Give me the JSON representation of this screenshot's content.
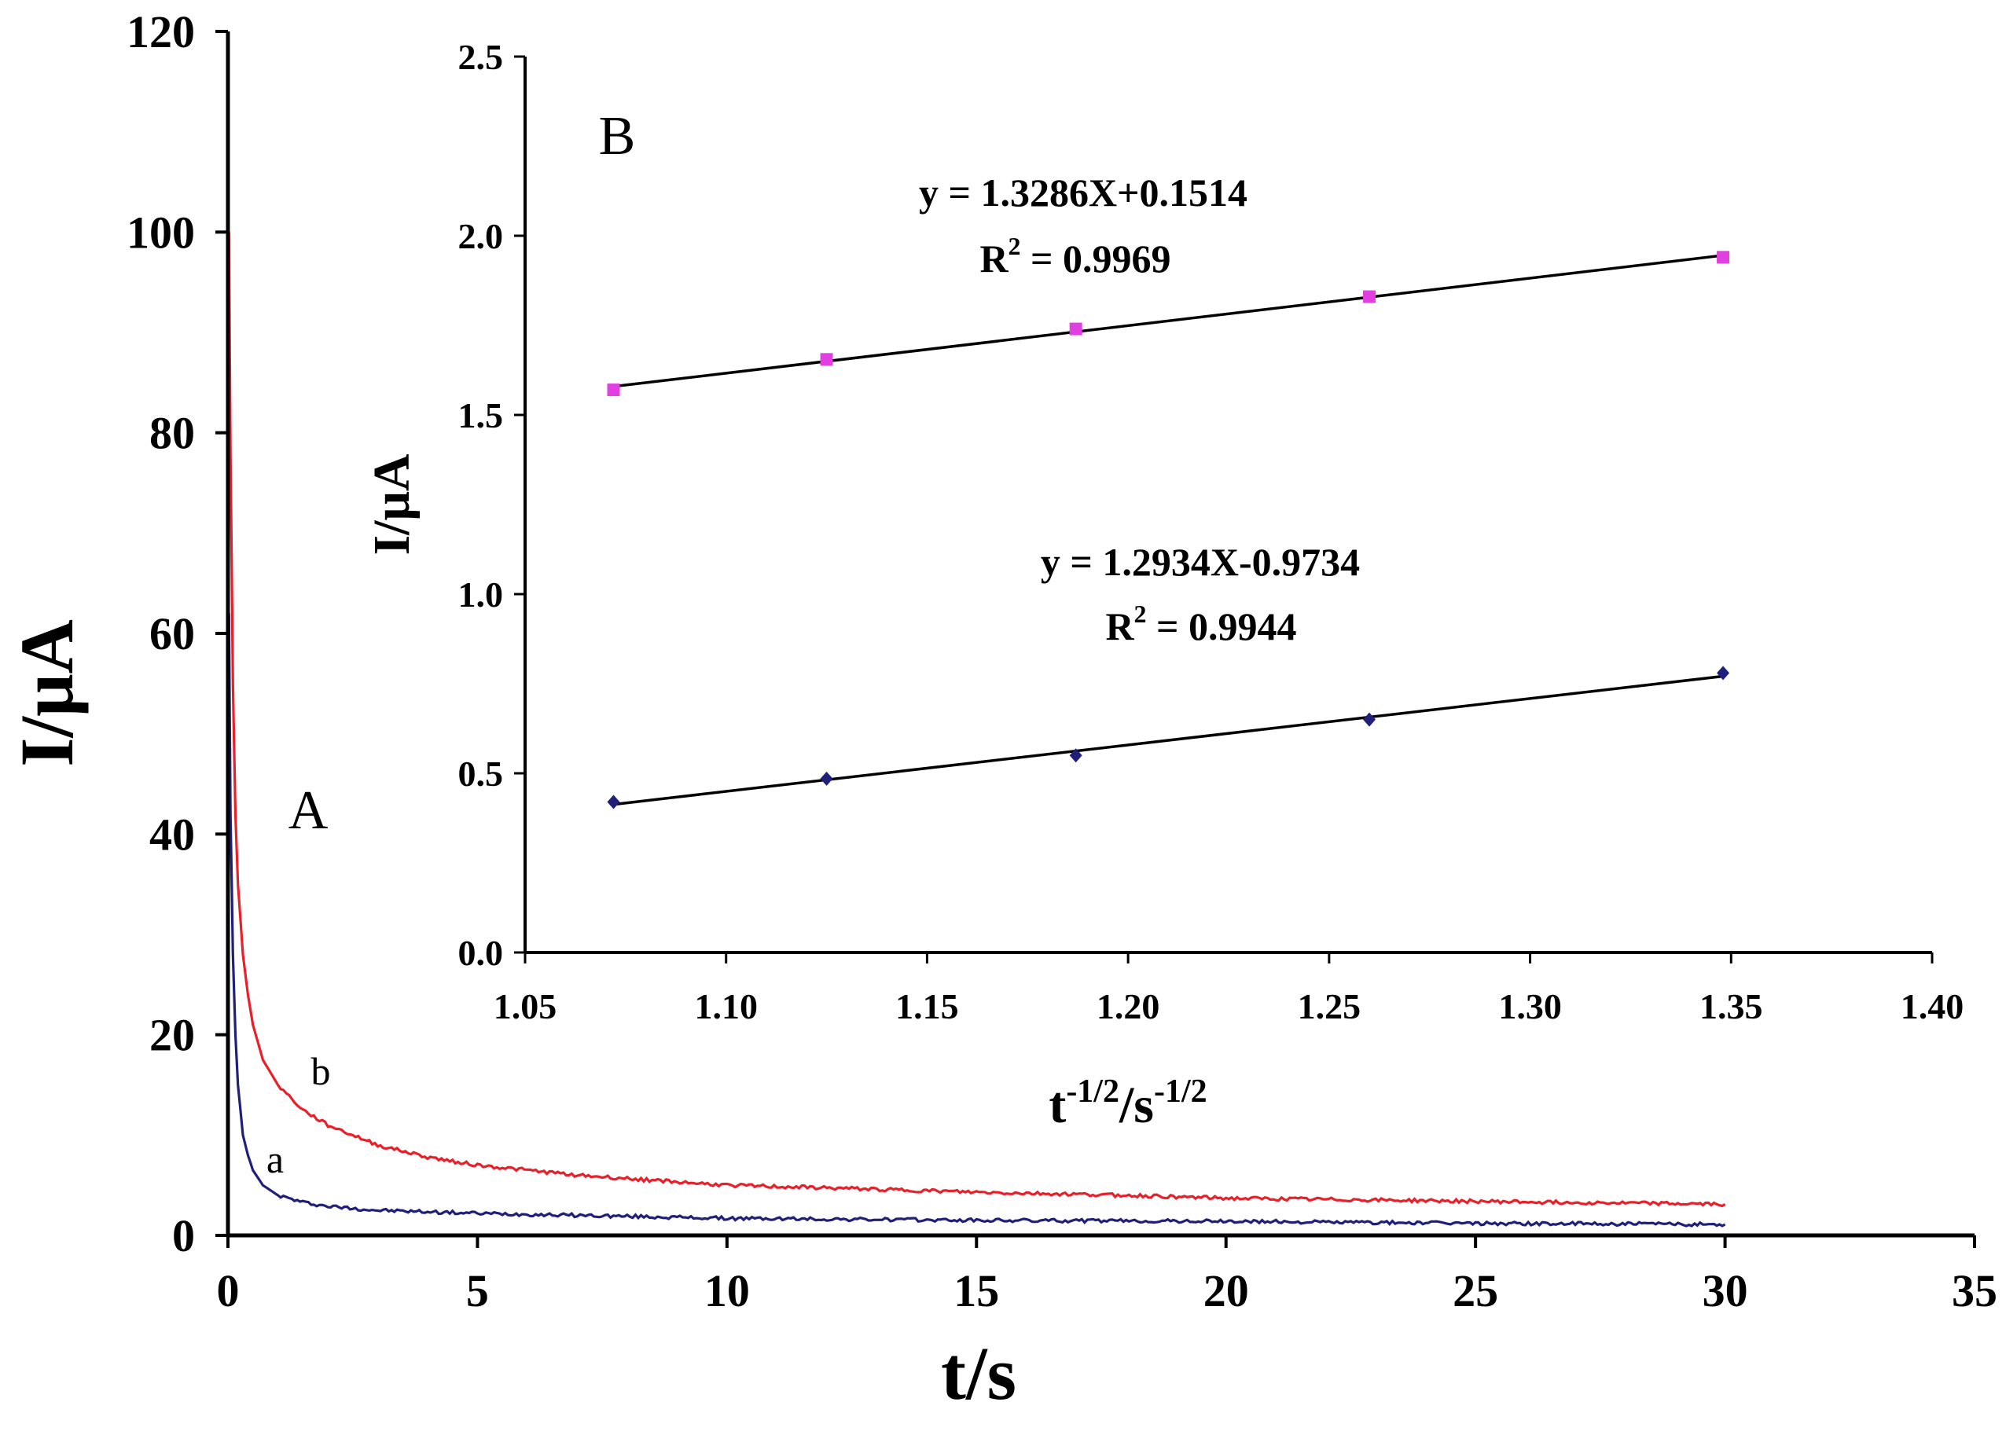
{
  "chart_data": [
    {
      "panel": "A",
      "type": "line",
      "xlabel": "t/s",
      "ylabel": "I/μA",
      "xlim": [
        0,
        35
      ],
      "ylim": [
        0,
        120
      ],
      "xticks": [
        "0",
        "5",
        "10",
        "15",
        "20",
        "25",
        "30",
        "35"
      ],
      "yticks": [
        "0",
        "20",
        "40",
        "60",
        "80",
        "100",
        "120"
      ],
      "grid": false,
      "series": [
        {
          "name": "b",
          "color": "#e8202a",
          "x": [
            0.02,
            0.05,
            0.1,
            0.15,
            0.2,
            0.3,
            0.4,
            0.5,
            0.7,
            1,
            1.5,
            2,
            3,
            4,
            5,
            7,
            10,
            13,
            15,
            18,
            20,
            25,
            30
          ],
          "y": [
            100,
            78,
            55,
            42,
            35,
            28,
            24,
            21,
            17.5,
            15,
            12.5,
            11,
            9,
            7.8,
            7,
            6,
            5,
            4.6,
            4.3,
            4,
            3.7,
            3.4,
            3.1
          ]
        },
        {
          "name": "a",
          "color": "#20207a",
          "x": [
            0.02,
            0.05,
            0.1,
            0.15,
            0.2,
            0.3,
            0.4,
            0.5,
            0.7,
            1,
            1.5,
            2,
            3,
            5,
            7,
            10,
            15,
            20,
            25,
            30
          ],
          "y": [
            62,
            42,
            28,
            20,
            15,
            10,
            8,
            6.5,
            5,
            4,
            3.3,
            2.9,
            2.5,
            2.2,
            2,
            1.7,
            1.5,
            1.4,
            1.2,
            1.1
          ]
        }
      ]
    },
    {
      "panel": "B",
      "type": "scatter",
      "xlabel_base": "t",
      "xlabel_exp1": "-1/2",
      "xlabel_mid": "/s",
      "xlabel_exp2": "-1/2",
      "ylabel": "I/μA",
      "xlim": [
        1.05,
        1.4
      ],
      "ylim": [
        0,
        2.5
      ],
      "xticks": [
        "1.05",
        "1.10",
        "1.15",
        "1.20",
        "1.25",
        "1.30",
        "1.35",
        "1.40"
      ],
      "yticks": [
        "0.0",
        "0.5",
        "1.0",
        "1.5",
        "2.0",
        "2.5"
      ],
      "grid": false,
      "series": [
        {
          "color": "#e040e0",
          "marker": "square",
          "x": [
            1.072,
            1.125,
            1.187,
            1.26,
            1.348
          ],
          "y": [
            1.57,
            1.655,
            1.74,
            1.83,
            1.94
          ],
          "fit": {
            "slope": 1.3286,
            "intercept": 0.1514
          },
          "equation": "y = 1.3286X+0.1514",
          "r2_label": "R",
          "r2_sup": "2",
          "r2_value": " = 0.9969"
        },
        {
          "color": "#20207a",
          "marker": "diamond",
          "x": [
            1.072,
            1.125,
            1.187,
            1.26,
            1.348
          ],
          "y": [
            0.42,
            0.485,
            0.55,
            0.65,
            0.78
          ],
          "fit": {
            "slope": 1.2934,
            "intercept": -0.9734
          },
          "equation": "y = 1.2934X-0.9734",
          "r2_label": "R",
          "r2_sup": "2",
          "r2_value": " = 0.9944"
        }
      ]
    }
  ]
}
